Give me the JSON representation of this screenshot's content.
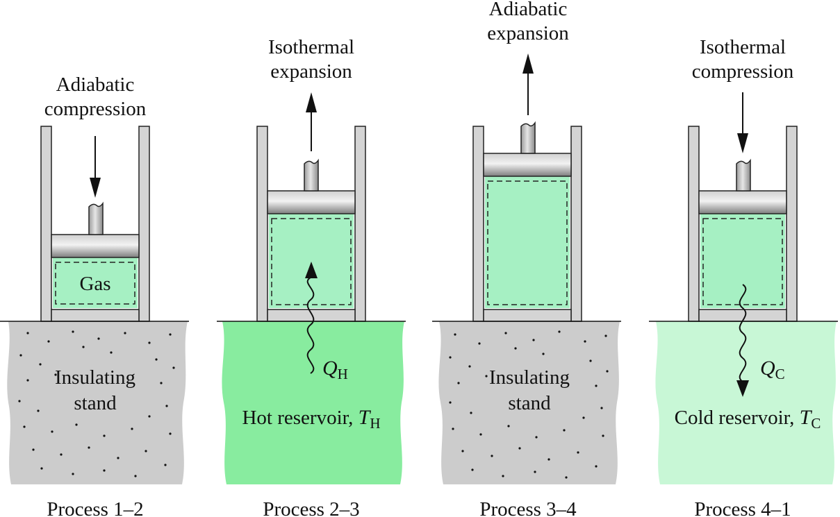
{
  "panels": [
    {
      "process_label": "Process 1–2",
      "action_line1": "Adiabatic",
      "action_line2": "compression",
      "gas_label": "Gas",
      "base_line1": "Insulating",
      "base_line2": "stand",
      "heat_symbol": "",
      "heat_subscript": "",
      "reservoir_text": "",
      "reservoir_symbol": "",
      "reservoir_subscript": ""
    },
    {
      "process_label": "Process 2–3",
      "action_line1": "Isothermal",
      "action_line2": "expansion",
      "gas_label": "",
      "base_line1": "",
      "base_line2": "",
      "heat_symbol": "Q",
      "heat_subscript": "H",
      "reservoir_text": "Hot reservoir, ",
      "reservoir_symbol": "T",
      "reservoir_subscript": "H"
    },
    {
      "process_label": "Process 3–4",
      "action_line1": "Adiabatic",
      "action_line2": "expansion",
      "gas_label": "",
      "base_line1": "Insulating",
      "base_line2": "stand",
      "heat_symbol": "",
      "heat_subscript": "",
      "reservoir_text": "",
      "reservoir_symbol": "",
      "reservoir_subscript": ""
    },
    {
      "process_label": "Process 4–1",
      "action_line1": "Isothermal",
      "action_line2": "compression",
      "gas_label": "",
      "base_line1": "",
      "base_line2": "",
      "heat_symbol": "Q",
      "heat_subscript": "C",
      "reservoir_text": "Cold reservoir, ",
      "reservoir_symbol": "T",
      "reservoir_subscript": "C"
    }
  ],
  "colors": {
    "gas": "#a6f0c3",
    "hot_reservoir": "#88ec9f",
    "cold_reservoir": "#c8f7d6",
    "insulating_stand": "#cccccc",
    "cylinder_wall": "#d4d4d4",
    "piston": "#8f8f8f"
  }
}
